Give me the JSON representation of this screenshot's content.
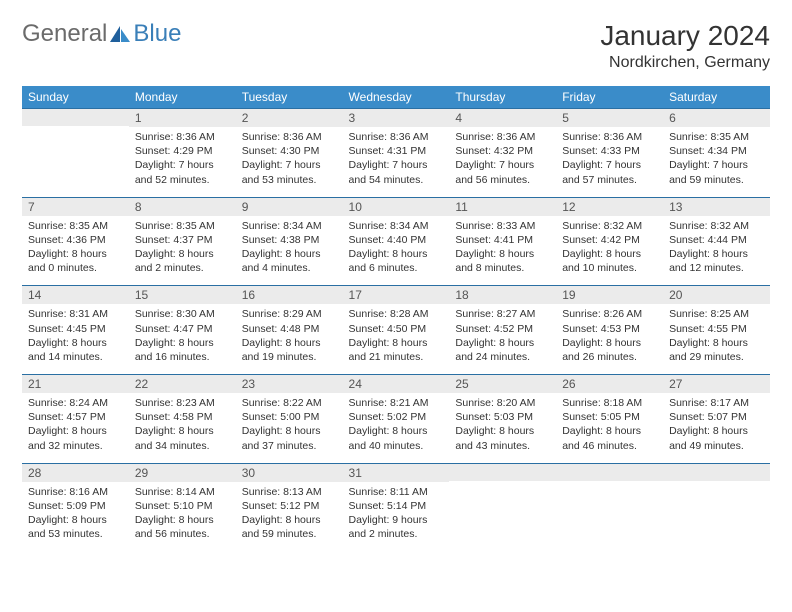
{
  "logo": {
    "general": "General",
    "blue": "Blue"
  },
  "title": "January 2024",
  "location": "Nordkirchen, Germany",
  "colors": {
    "header_bg": "#3a8cc9",
    "daynum_bg": "#ebebeb",
    "rule": "#2a6fa3",
    "logo_gray": "#6b6b6b",
    "logo_blue": "#3a7fb8"
  },
  "dow": [
    "Sunday",
    "Monday",
    "Tuesday",
    "Wednesday",
    "Thursday",
    "Friday",
    "Saturday"
  ],
  "weeks": [
    [
      {
        "n": "",
        "lines": [
          "",
          "",
          "",
          ""
        ]
      },
      {
        "n": "1",
        "lines": [
          "Sunrise: 8:36 AM",
          "Sunset: 4:29 PM",
          "Daylight: 7 hours",
          "and 52 minutes."
        ]
      },
      {
        "n": "2",
        "lines": [
          "Sunrise: 8:36 AM",
          "Sunset: 4:30 PM",
          "Daylight: 7 hours",
          "and 53 minutes."
        ]
      },
      {
        "n": "3",
        "lines": [
          "Sunrise: 8:36 AM",
          "Sunset: 4:31 PM",
          "Daylight: 7 hours",
          "and 54 minutes."
        ]
      },
      {
        "n": "4",
        "lines": [
          "Sunrise: 8:36 AM",
          "Sunset: 4:32 PM",
          "Daylight: 7 hours",
          "and 56 minutes."
        ]
      },
      {
        "n": "5",
        "lines": [
          "Sunrise: 8:36 AM",
          "Sunset: 4:33 PM",
          "Daylight: 7 hours",
          "and 57 minutes."
        ]
      },
      {
        "n": "6",
        "lines": [
          "Sunrise: 8:35 AM",
          "Sunset: 4:34 PM",
          "Daylight: 7 hours",
          "and 59 minutes."
        ]
      }
    ],
    [
      {
        "n": "7",
        "lines": [
          "Sunrise: 8:35 AM",
          "Sunset: 4:36 PM",
          "Daylight: 8 hours",
          "and 0 minutes."
        ]
      },
      {
        "n": "8",
        "lines": [
          "Sunrise: 8:35 AM",
          "Sunset: 4:37 PM",
          "Daylight: 8 hours",
          "and 2 minutes."
        ]
      },
      {
        "n": "9",
        "lines": [
          "Sunrise: 8:34 AM",
          "Sunset: 4:38 PM",
          "Daylight: 8 hours",
          "and 4 minutes."
        ]
      },
      {
        "n": "10",
        "lines": [
          "Sunrise: 8:34 AM",
          "Sunset: 4:40 PM",
          "Daylight: 8 hours",
          "and 6 minutes."
        ]
      },
      {
        "n": "11",
        "lines": [
          "Sunrise: 8:33 AM",
          "Sunset: 4:41 PM",
          "Daylight: 8 hours",
          "and 8 minutes."
        ]
      },
      {
        "n": "12",
        "lines": [
          "Sunrise: 8:32 AM",
          "Sunset: 4:42 PM",
          "Daylight: 8 hours",
          "and 10 minutes."
        ]
      },
      {
        "n": "13",
        "lines": [
          "Sunrise: 8:32 AM",
          "Sunset: 4:44 PM",
          "Daylight: 8 hours",
          "and 12 minutes."
        ]
      }
    ],
    [
      {
        "n": "14",
        "lines": [
          "Sunrise: 8:31 AM",
          "Sunset: 4:45 PM",
          "Daylight: 8 hours",
          "and 14 minutes."
        ]
      },
      {
        "n": "15",
        "lines": [
          "Sunrise: 8:30 AM",
          "Sunset: 4:47 PM",
          "Daylight: 8 hours",
          "and 16 minutes."
        ]
      },
      {
        "n": "16",
        "lines": [
          "Sunrise: 8:29 AM",
          "Sunset: 4:48 PM",
          "Daylight: 8 hours",
          "and 19 minutes."
        ]
      },
      {
        "n": "17",
        "lines": [
          "Sunrise: 8:28 AM",
          "Sunset: 4:50 PM",
          "Daylight: 8 hours",
          "and 21 minutes."
        ]
      },
      {
        "n": "18",
        "lines": [
          "Sunrise: 8:27 AM",
          "Sunset: 4:52 PM",
          "Daylight: 8 hours",
          "and 24 minutes."
        ]
      },
      {
        "n": "19",
        "lines": [
          "Sunrise: 8:26 AM",
          "Sunset: 4:53 PM",
          "Daylight: 8 hours",
          "and 26 minutes."
        ]
      },
      {
        "n": "20",
        "lines": [
          "Sunrise: 8:25 AM",
          "Sunset: 4:55 PM",
          "Daylight: 8 hours",
          "and 29 minutes."
        ]
      }
    ],
    [
      {
        "n": "21",
        "lines": [
          "Sunrise: 8:24 AM",
          "Sunset: 4:57 PM",
          "Daylight: 8 hours",
          "and 32 minutes."
        ]
      },
      {
        "n": "22",
        "lines": [
          "Sunrise: 8:23 AM",
          "Sunset: 4:58 PM",
          "Daylight: 8 hours",
          "and 34 minutes."
        ]
      },
      {
        "n": "23",
        "lines": [
          "Sunrise: 8:22 AM",
          "Sunset: 5:00 PM",
          "Daylight: 8 hours",
          "and 37 minutes."
        ]
      },
      {
        "n": "24",
        "lines": [
          "Sunrise: 8:21 AM",
          "Sunset: 5:02 PM",
          "Daylight: 8 hours",
          "and 40 minutes."
        ]
      },
      {
        "n": "25",
        "lines": [
          "Sunrise: 8:20 AM",
          "Sunset: 5:03 PM",
          "Daylight: 8 hours",
          "and 43 minutes."
        ]
      },
      {
        "n": "26",
        "lines": [
          "Sunrise: 8:18 AM",
          "Sunset: 5:05 PM",
          "Daylight: 8 hours",
          "and 46 minutes."
        ]
      },
      {
        "n": "27",
        "lines": [
          "Sunrise: 8:17 AM",
          "Sunset: 5:07 PM",
          "Daylight: 8 hours",
          "and 49 minutes."
        ]
      }
    ],
    [
      {
        "n": "28",
        "lines": [
          "Sunrise: 8:16 AM",
          "Sunset: 5:09 PM",
          "Daylight: 8 hours",
          "and 53 minutes."
        ]
      },
      {
        "n": "29",
        "lines": [
          "Sunrise: 8:14 AM",
          "Sunset: 5:10 PM",
          "Daylight: 8 hours",
          "and 56 minutes."
        ]
      },
      {
        "n": "30",
        "lines": [
          "Sunrise: 8:13 AM",
          "Sunset: 5:12 PM",
          "Daylight: 8 hours",
          "and 59 minutes."
        ]
      },
      {
        "n": "31",
        "lines": [
          "Sunrise: 8:11 AM",
          "Sunset: 5:14 PM",
          "Daylight: 9 hours",
          "and 2 minutes."
        ]
      },
      {
        "n": "",
        "lines": [
          "",
          "",
          "",
          ""
        ]
      },
      {
        "n": "",
        "lines": [
          "",
          "",
          "",
          ""
        ]
      },
      {
        "n": "",
        "lines": [
          "",
          "",
          "",
          ""
        ]
      }
    ]
  ]
}
